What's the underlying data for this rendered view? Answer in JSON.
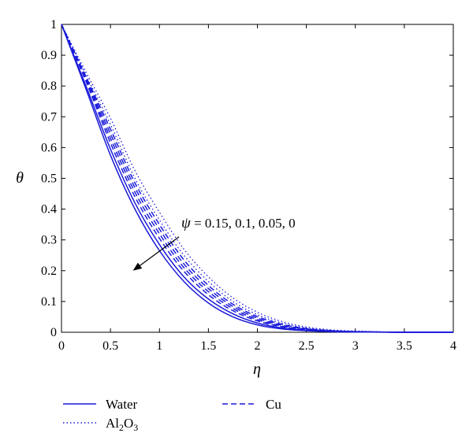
{
  "chart_data": {
    "type": "line",
    "xlabel": "η",
    "ylabel": "θ",
    "xlim": [
      0,
      4
    ],
    "ylim": [
      0,
      1
    ],
    "xticks": [
      "0",
      "0.5",
      "1",
      "1.5",
      "2",
      "2.5",
      "3",
      "3.5",
      "4"
    ],
    "yticks": [
      "0",
      "0.1",
      "0.2",
      "0.3",
      "0.4",
      "0.5",
      "0.6",
      "0.7",
      "0.8",
      "0.9",
      "1"
    ],
    "grid": false,
    "line_color": "#1a1adb",
    "annotation": {
      "symbol": "ψ",
      "text": " = 0.15, 0.1, 0.05, 0",
      "arrow_from": [
        1.2,
        0.31
      ],
      "arrow_to": [
        0.73,
        0.2
      ]
    },
    "legend": [
      {
        "label": "Water",
        "style": "solid"
      },
      {
        "label": "Cu",
        "style": "dashed"
      },
      {
        "label": "Al",
        "sub": "2",
        "label2": "O",
        "sub2": "3",
        "style": "dotted"
      }
    ],
    "x": [
      0,
      0.25,
      0.5,
      0.75,
      1,
      1.25,
      1.5,
      1.75,
      2,
      2.25,
      2.5,
      2.75,
      3,
      3.5,
      4
    ],
    "series": [
      {
        "fluid": "Water",
        "psi": "0",
        "style": "solid",
        "values": [
          1,
          0.79,
          0.575,
          0.4,
          0.265,
          0.165,
          0.095,
          0.05,
          0.024,
          0.011,
          0.005,
          0.002,
          0.001,
          0,
          0
        ]
      },
      {
        "fluid": "Water",
        "psi": "0.15",
        "style": "solid",
        "values": [
          1,
          0.8,
          0.595,
          0.42,
          0.285,
          0.18,
          0.108,
          0.06,
          0.03,
          0.014,
          0.006,
          0.003,
          0.001,
          0,
          0
        ]
      },
      {
        "fluid": "Cu",
        "psi": "0",
        "style": "dashed",
        "values": [
          1,
          0.815,
          0.615,
          0.44,
          0.305,
          0.198,
          0.122,
          0.07,
          0.037,
          0.018,
          0.008,
          0.004,
          0.002,
          0,
          0
        ]
      },
      {
        "fluid": "Cu",
        "psi": "0.05",
        "style": "dashed",
        "values": [
          1,
          0.82,
          0.63,
          0.455,
          0.32,
          0.21,
          0.132,
          0.077,
          0.041,
          0.02,
          0.009,
          0.004,
          0.002,
          0,
          0
        ]
      },
      {
        "fluid": "Cu",
        "psi": "0.1",
        "style": "dashed",
        "values": [
          1,
          0.825,
          0.645,
          0.47,
          0.335,
          0.222,
          0.142,
          0.084,
          0.046,
          0.023,
          0.011,
          0.005,
          0.002,
          0,
          0
        ]
      },
      {
        "fluid": "Cu",
        "psi": "0.15",
        "style": "dashed",
        "values": [
          1,
          0.83,
          0.66,
          0.485,
          0.35,
          0.235,
          0.152,
          0.091,
          0.051,
          0.026,
          0.012,
          0.005,
          0.002,
          0,
          0
        ]
      },
      {
        "fluid": "Al2O3",
        "psi": "0",
        "style": "dotted",
        "values": [
          1,
          0.835,
          0.675,
          0.5,
          0.365,
          0.25,
          0.165,
          0.1,
          0.057,
          0.03,
          0.014,
          0.006,
          0.003,
          0,
          0
        ]
      },
      {
        "fluid": "Al2O3",
        "psi": "0.15",
        "style": "dotted",
        "values": [
          1,
          0.845,
          0.695,
          0.525,
          0.39,
          0.27,
          0.18,
          0.112,
          0.065,
          0.035,
          0.017,
          0.008,
          0.004,
          0,
          0
        ]
      }
    ]
  }
}
